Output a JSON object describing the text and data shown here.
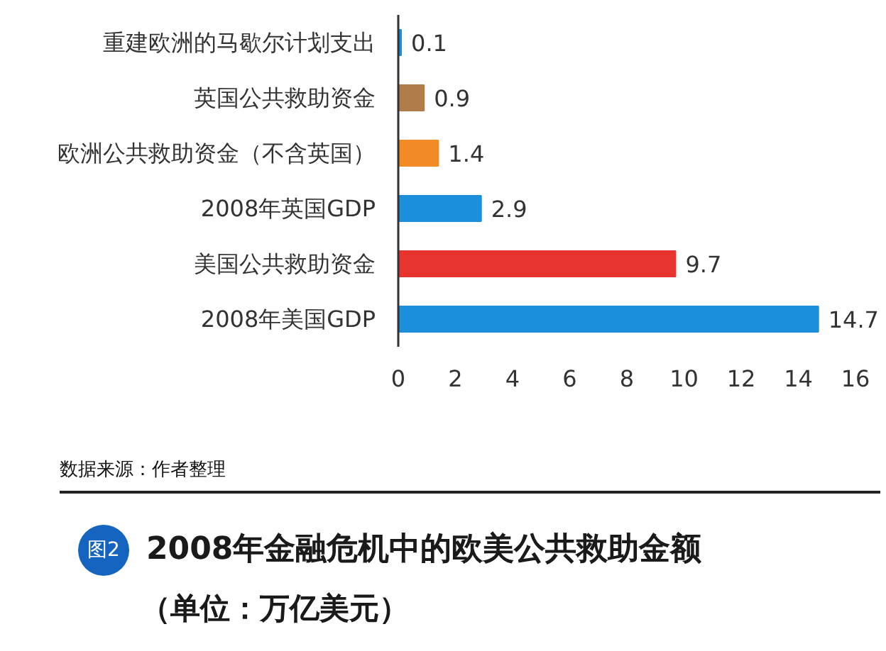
{
  "chart_data": {
    "type": "bar",
    "orientation": "horizontal",
    "title": "2008年金融危机中的欧美公共救助金额",
    "subtitle": "（单位：万亿美元）",
    "annotations": [
      "数据来源：作者整理",
      "图2"
    ],
    "categories": [
      "重建欧洲的马歇尔计划支出",
      "英国公共救助资金",
      "欧洲公共救助资金（不含英国）",
      "2008年英国GDP",
      "美国公共救助资金",
      "2008年美国GDP"
    ],
    "values": [
      0.1,
      0.9,
      1.4,
      2.9,
      9.7,
      14.7
    ],
    "colors": [
      "#1b8fd9",
      "#b07d4a",
      "#f28a26",
      "#1b8fd9",
      "#e8342f",
      "#1b8fd9"
    ],
    "xlim": [
      0,
      16
    ],
    "xticks": [
      0,
      2,
      4,
      6,
      8,
      10,
      12,
      14,
      16
    ],
    "data_labels": true
  }
}
